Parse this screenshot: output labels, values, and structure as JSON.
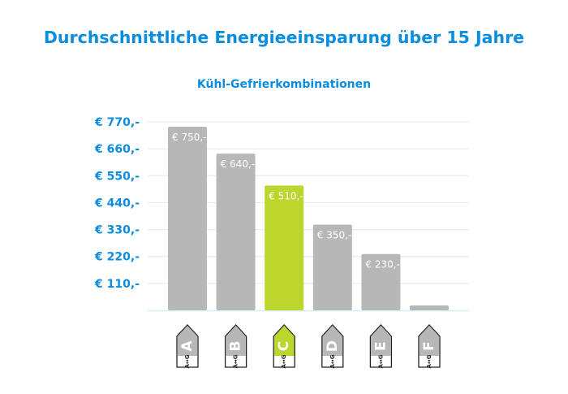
{
  "title": "Durchschnittliche Energieeinsparung über 15 Jahre",
  "chart_data": {
    "type": "bar",
    "title": "Kühl-Gefrierkombinationen",
    "categories": [
      "A",
      "B",
      "C",
      "D",
      "E",
      "F"
    ],
    "values": [
      750,
      640,
      510,
      350,
      230,
      20
    ],
    "data_labels": [
      "€ 750,-",
      "€ 640,-",
      "€ 510,-",
      "€ 350,-",
      "€ 230,-",
      ""
    ],
    "y_ticks": [
      110,
      220,
      330,
      440,
      550,
      660,
      770
    ],
    "y_tick_labels": [
      "€ 110,-",
      "€ 220,-",
      "€ 330,-",
      "€ 440,-",
      "€ 550,-",
      "€ 660,-",
      "€ 770,-"
    ],
    "ylim": [
      0,
      770
    ],
    "grid": true,
    "scale_label": "A↔G",
    "colors": {
      "bar": "#b7b7b7",
      "highlight": "#bcd62d",
      "highlight_category": "C",
      "axis_text": "#0a8ddf",
      "grid": "#d6ecf8"
    }
  }
}
